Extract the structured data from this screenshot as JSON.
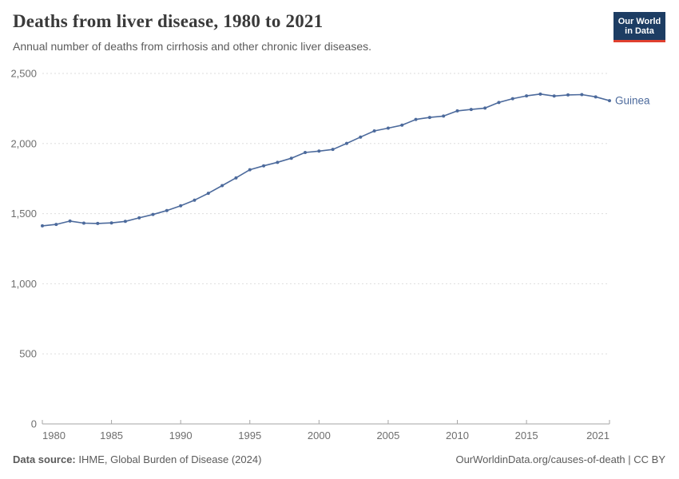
{
  "header": {
    "title": "Deaths from liver disease, 1980 to 2021",
    "subtitle": "Annual number of deaths from cirrhosis and other chronic liver diseases.",
    "logo_line1": "Our World",
    "logo_line2": "in Data"
  },
  "colors": {
    "series_blue": "#4c6a9c",
    "logo_navy": "#1d3d63",
    "logo_red": "#e0402f",
    "grid_gray": "#dedede",
    "axis_gray": "#a5a5a5",
    "tick_text": "#6e6e6e"
  },
  "chart_data": {
    "type": "line",
    "title": "Deaths from liver disease, 1980 to 2021",
    "xlabel": "",
    "ylabel": "",
    "xlim": [
      1980,
      2021
    ],
    "ylim": [
      0,
      2500
    ],
    "grid": "horizontal dashed",
    "legend_position": "end-of-line label",
    "yticks": [
      {
        "value": 0,
        "label": "0"
      },
      {
        "value": 500,
        "label": "500"
      },
      {
        "value": 1000,
        "label": "1,000"
      },
      {
        "value": 1500,
        "label": "1,500"
      },
      {
        "value": 2000,
        "label": "2,000"
      },
      {
        "value": 2500,
        "label": "2,500"
      }
    ],
    "xticks": [
      {
        "value": 1980,
        "label": "1980"
      },
      {
        "value": 1985,
        "label": "1985"
      },
      {
        "value": 1990,
        "label": "1990"
      },
      {
        "value": 1995,
        "label": "1995"
      },
      {
        "value": 2000,
        "label": "2000"
      },
      {
        "value": 2005,
        "label": "2005"
      },
      {
        "value": 2010,
        "label": "2010"
      },
      {
        "value": 2015,
        "label": "2015"
      },
      {
        "value": 2021,
        "label": "2021"
      }
    ],
    "series": [
      {
        "name": "Guinea",
        "color": "#4c6a9c",
        "x": [
          1980,
          1981,
          1982,
          1983,
          1984,
          1985,
          1986,
          1987,
          1988,
          1989,
          1990,
          1991,
          1992,
          1993,
          1994,
          1995,
          1996,
          1997,
          1998,
          1999,
          2000,
          2001,
          2002,
          2003,
          2004,
          2005,
          2006,
          2007,
          2008,
          2009,
          2010,
          2011,
          2012,
          2013,
          2014,
          2015,
          2016,
          2017,
          2018,
          2019,
          2020,
          2021
        ],
        "values": [
          1413,
          1423,
          1447,
          1432,
          1430,
          1434,
          1445,
          1470,
          1494,
          1522,
          1556,
          1596,
          1645,
          1700,
          1755,
          1813,
          1841,
          1866,
          1895,
          1936,
          1946,
          1958,
          2001,
          2046,
          2090,
          2110,
          2131,
          2172,
          2186,
          2196,
          2233,
          2243,
          2253,
          2293,
          2320,
          2340,
          2353,
          2339,
          2347,
          2349,
          2333,
          2306
        ]
      }
    ]
  },
  "footer": {
    "source_label": "Data source:",
    "source_text": " IHME, Global Burden of Disease (2024)",
    "link_text": "OurWorldinData.org/causes-of-death | CC BY"
  }
}
